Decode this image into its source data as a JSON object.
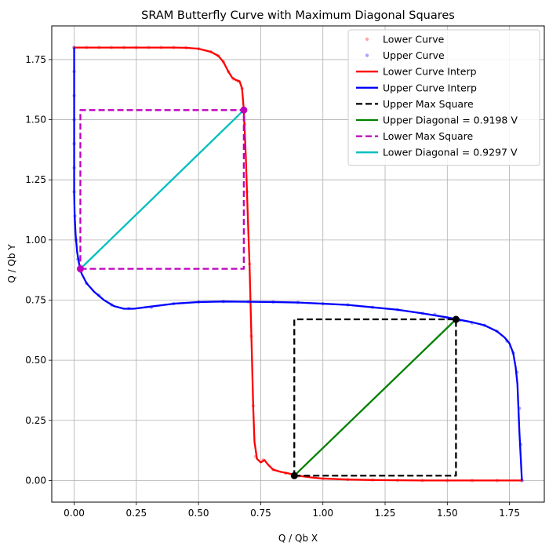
{
  "chart_data": {
    "type": "line",
    "title": "SRAM Butterfly Curve with Maximum Diagonal Squares",
    "xlabel": "Q / Qb X",
    "ylabel": "Q / Qb Y",
    "xlim": [
      -0.09,
      1.89
    ],
    "ylim": [
      -0.09,
      1.89
    ],
    "x_ticks": [
      0.0,
      0.25,
      0.5,
      0.75,
      1.0,
      1.25,
      1.5,
      1.75
    ],
    "y_ticks": [
      0.0,
      0.25,
      0.5,
      0.75,
      1.0,
      1.25,
      1.5,
      1.75
    ],
    "x_tick_labels": [
      "0.00",
      "0.25",
      "0.50",
      "0.75",
      "1.00",
      "1.25",
      "1.50",
      "1.75"
    ],
    "y_tick_labels": [
      "0.00",
      "0.25",
      "0.50",
      "0.75",
      "1.00",
      "1.25",
      "1.50",
      "1.75"
    ],
    "grid": true,
    "legend_position": "upper-right",
    "series": [
      {
        "name": "Lower Curve",
        "style": "points",
        "color": "#ff0000",
        "alpha": 0.35,
        "points": [
          [
            0,
            1.8
          ],
          [
            0.05,
            1.8
          ],
          [
            0.1,
            1.8
          ],
          [
            0.15,
            1.8
          ],
          [
            0.2,
            1.8
          ],
          [
            0.25,
            1.8
          ],
          [
            0.3,
            1.8
          ],
          [
            0.35,
            1.8
          ],
          [
            0.4,
            1.8
          ],
          [
            0.45,
            1.799
          ],
          [
            0.5,
            1.795
          ],
          [
            0.55,
            1.782
          ],
          [
            0.58,
            1.765
          ],
          [
            0.6,
            1.74
          ],
          [
            0.62,
            1.7
          ],
          [
            0.64,
            1.67
          ],
          [
            0.66,
            1.66
          ],
          [
            0.675,
            1.63
          ],
          [
            0.685,
            1.48
          ],
          [
            0.695,
            1.2
          ],
          [
            0.705,
            0.9
          ],
          [
            0.712,
            0.6
          ],
          [
            0.72,
            0.31
          ],
          [
            0.73,
            0.1
          ],
          [
            0.76,
            0.085
          ],
          [
            0.8,
            0.045
          ],
          [
            0.85,
            0.03
          ],
          [
            0.9,
            0.018
          ],
          [
            1.0,
            0.008
          ],
          [
            1.1,
            0.004
          ],
          [
            1.2,
            0.002
          ],
          [
            1.3,
            0.001
          ],
          [
            1.4,
            0
          ],
          [
            1.5,
            0
          ],
          [
            1.6,
            0
          ],
          [
            1.7,
            0
          ],
          [
            1.8,
            0
          ]
        ]
      },
      {
        "name": "Upper Curve",
        "style": "points",
        "color": "#0000ff",
        "alpha": 0.35,
        "points": [
          [
            0,
            1.8
          ],
          [
            0,
            1.7
          ],
          [
            0,
            1.6
          ],
          [
            0,
            1.5
          ],
          [
            0,
            1.4
          ],
          [
            0,
            1.3
          ],
          [
            0,
            1.2
          ],
          [
            0.003,
            1.1
          ],
          [
            0.008,
            1.0
          ],
          [
            0.015,
            0.92
          ],
          [
            0.025,
            0.87
          ],
          [
            0.05,
            0.82
          ],
          [
            0.1,
            0.77
          ],
          [
            0.15,
            0.73
          ],
          [
            0.22,
            0.715
          ],
          [
            0.31,
            0.72
          ],
          [
            0.4,
            0.735
          ],
          [
            0.5,
            0.742
          ],
          [
            0.6,
            0.744
          ],
          [
            0.7,
            0.743
          ],
          [
            0.8,
            0.742
          ],
          [
            0.9,
            0.74
          ],
          [
            1.0,
            0.735
          ],
          [
            1.1,
            0.73
          ],
          [
            1.2,
            0.72
          ],
          [
            1.3,
            0.71
          ],
          [
            1.4,
            0.695
          ],
          [
            1.45,
            0.69
          ],
          [
            1.5,
            0.675
          ],
          [
            1.55,
            0.665
          ],
          [
            1.6,
            0.655
          ],
          [
            1.65,
            0.645
          ],
          [
            1.7,
            0.62
          ],
          [
            1.74,
            0.58
          ],
          [
            1.765,
            0.53
          ],
          [
            1.78,
            0.45
          ],
          [
            1.79,
            0.3
          ],
          [
            1.795,
            0.15
          ],
          [
            1.8,
            0
          ]
        ]
      },
      {
        "name": "Lower Curve Interp",
        "style": "line",
        "color": "#ff0000",
        "points": [
          [
            0,
            1.8
          ],
          [
            0.05,
            1.8
          ],
          [
            0.1,
            1.8
          ],
          [
            0.15,
            1.8
          ],
          [
            0.2,
            1.8
          ],
          [
            0.25,
            1.8
          ],
          [
            0.3,
            1.8
          ],
          [
            0.35,
            1.8
          ],
          [
            0.4,
            1.8
          ],
          [
            0.45,
            1.799
          ],
          [
            0.5,
            1.795
          ],
          [
            0.55,
            1.782
          ],
          [
            0.58,
            1.765
          ],
          [
            0.6,
            1.74
          ],
          [
            0.62,
            1.7
          ],
          [
            0.635,
            1.675
          ],
          [
            0.65,
            1.665
          ],
          [
            0.665,
            1.66
          ],
          [
            0.675,
            1.63
          ],
          [
            0.682,
            1.54
          ],
          [
            0.69,
            1.35
          ],
          [
            0.698,
            1.1
          ],
          [
            0.705,
            0.9
          ],
          [
            0.71,
            0.7
          ],
          [
            0.715,
            0.5
          ],
          [
            0.72,
            0.3
          ],
          [
            0.725,
            0.16
          ],
          [
            0.735,
            0.09
          ],
          [
            0.75,
            0.075
          ],
          [
            0.765,
            0.085
          ],
          [
            0.78,
            0.065
          ],
          [
            0.8,
            0.045
          ],
          [
            0.83,
            0.036
          ],
          [
            0.86,
            0.03
          ],
          [
            0.9,
            0.02
          ],
          [
            0.95,
            0.013
          ],
          [
            1.0,
            0.008
          ],
          [
            1.1,
            0.004
          ],
          [
            1.2,
            0.002
          ],
          [
            1.3,
            0.001
          ],
          [
            1.4,
            0
          ],
          [
            1.5,
            0
          ],
          [
            1.6,
            0
          ],
          [
            1.7,
            0
          ],
          [
            1.8,
            0
          ]
        ]
      },
      {
        "name": "Upper Curve Interp",
        "style": "line",
        "color": "#0000ff",
        "points": [
          [
            0,
            1.8
          ],
          [
            0,
            1.7
          ],
          [
            0,
            1.6
          ],
          [
            0,
            1.5
          ],
          [
            0,
            1.4
          ],
          [
            0,
            1.3
          ],
          [
            0,
            1.2
          ],
          [
            0.002,
            1.1
          ],
          [
            0.006,
            1.02
          ],
          [
            0.012,
            0.95
          ],
          [
            0.02,
            0.9
          ],
          [
            0.03,
            0.86
          ],
          [
            0.05,
            0.82
          ],
          [
            0.08,
            0.785
          ],
          [
            0.12,
            0.75
          ],
          [
            0.16,
            0.725
          ],
          [
            0.2,
            0.714
          ],
          [
            0.24,
            0.714
          ],
          [
            0.3,
            0.722
          ],
          [
            0.4,
            0.735
          ],
          [
            0.5,
            0.742
          ],
          [
            0.6,
            0.744
          ],
          [
            0.7,
            0.743
          ],
          [
            0.8,
            0.742
          ],
          [
            0.9,
            0.74
          ],
          [
            1.0,
            0.735
          ],
          [
            1.1,
            0.73
          ],
          [
            1.2,
            0.72
          ],
          [
            1.3,
            0.71
          ],
          [
            1.4,
            0.695
          ],
          [
            1.5,
            0.678
          ],
          [
            1.6,
            0.658
          ],
          [
            1.65,
            0.645
          ],
          [
            1.7,
            0.62
          ],
          [
            1.73,
            0.595
          ],
          [
            1.75,
            0.57
          ],
          [
            1.765,
            0.53
          ],
          [
            1.775,
            0.47
          ],
          [
            1.782,
            0.4
          ],
          [
            1.786,
            0.3
          ],
          [
            1.79,
            0.2
          ],
          [
            1.795,
            0.1
          ],
          [
            1.8,
            0
          ]
        ]
      },
      {
        "name": "Upper Max Square",
        "style": "dashed",
        "color": "#000000",
        "points": [
          [
            0.885,
            0.02
          ],
          [
            1.535,
            0.02
          ],
          [
            1.535,
            0.67
          ],
          [
            0.885,
            0.67
          ],
          [
            0.885,
            0.02
          ]
        ]
      },
      {
        "name": "Upper Diagonal = 0.9198 V",
        "style": "line",
        "color": "#008000",
        "points": [
          [
            0.885,
            0.02
          ],
          [
            1.535,
            0.67
          ]
        ]
      },
      {
        "name": "Lower Max Square",
        "style": "dashed",
        "color": "#bf00bf",
        "points": [
          [
            0.025,
            0.88
          ],
          [
            0.682,
            0.88
          ],
          [
            0.682,
            1.54
          ],
          [
            0.025,
            1.54
          ],
          [
            0.025,
            0.88
          ]
        ]
      },
      {
        "name": "Lower Diagonal = 0.9297 V",
        "style": "line",
        "color": "#00bfbf",
        "points": [
          [
            0.025,
            0.88
          ],
          [
            0.682,
            1.54
          ]
        ]
      }
    ],
    "markers": [
      {
        "color": "#000000",
        "points": [
          [
            0.885,
            0.02
          ],
          [
            1.535,
            0.67
          ]
        ]
      },
      {
        "color": "#bf00bf",
        "points": [
          [
            0.025,
            0.88
          ],
          [
            0.682,
            1.54
          ]
        ]
      }
    ]
  }
}
